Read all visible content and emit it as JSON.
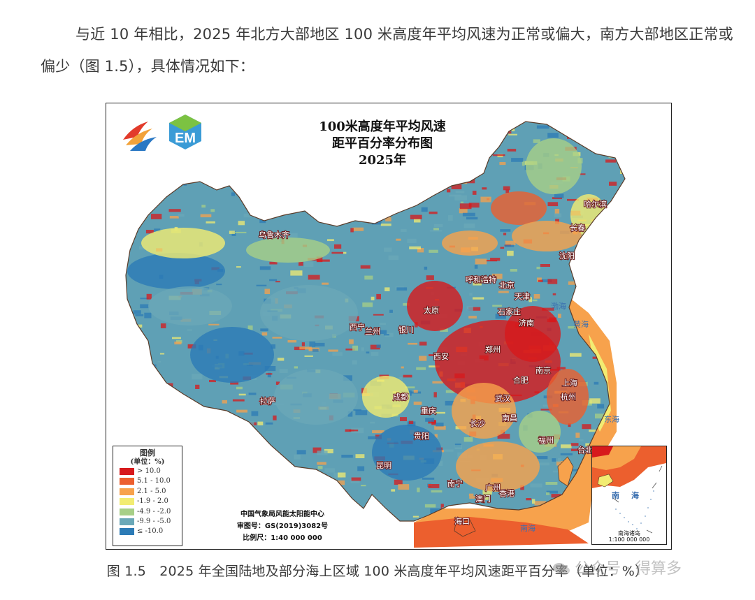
{
  "paragraph": "与近 10 年相比，2025 年北方大部地区 100 米高度年平均风速为正常或偏大，南方大部地区正常或偏少（图 1.5），具体情况如下：",
  "map": {
    "title_lines": [
      "100米高度年平均风速",
      "距平百分率分布图",
      "2025年"
    ],
    "legend": {
      "title": "图例",
      "unit": "(单位：%)",
      "items": [
        {
          "label": "> 10.0",
          "color": "#d7191c"
        },
        {
          "label": "5.1 - 10.0",
          "color": "#ec5f2e"
        },
        {
          "label": "2.1 - 5.0",
          "color": "#f7a24c"
        },
        {
          "label": "-1.9 - 2.0",
          "color": "#f2ec72"
        },
        {
          "label": "-4.9 - -2.0",
          "color": "#a7cf87"
        },
        {
          "label": "-9.9 - -5.0",
          "color": "#6aa8b8"
        },
        {
          "label": "≤ -10.0",
          "color": "#2c7bb6"
        }
      ]
    },
    "credits": [
      "中国气象局风能太阳能中心",
      "审图号：GS(2019)3082号",
      "比例尺：1:40 000 000"
    ],
    "cities": [
      "哈尔滨",
      "长春",
      "沈阳",
      "乌鲁木齐",
      "呼和浩特",
      "北京",
      "天津",
      "太原",
      "石家庄",
      "济南",
      "银川",
      "兰州",
      "西宁",
      "郑州",
      "西安",
      "南京",
      "合肥",
      "上海",
      "拉萨",
      "成都",
      "武汉",
      "杭州",
      "重庆",
      "南昌",
      "长沙",
      "贵阳",
      "福州",
      "台北",
      "昆明",
      "南宁",
      "广州",
      "香港",
      "澳门",
      "海口"
    ],
    "sea_labels": [
      "渤海",
      "黄海",
      "东海",
      "南海"
    ],
    "inset": {
      "sea_label_lines": [
        "南",
        "海"
      ],
      "caption_lines": [
        "南海诸岛",
        "1:100 000 000"
      ]
    }
  },
  "caption": "图 1.5　2025 年全国陆地及部分海上区域 100 米高度年平均风速距平百分率（单位：%）",
  "watermark": "公众号 · 得算多"
}
